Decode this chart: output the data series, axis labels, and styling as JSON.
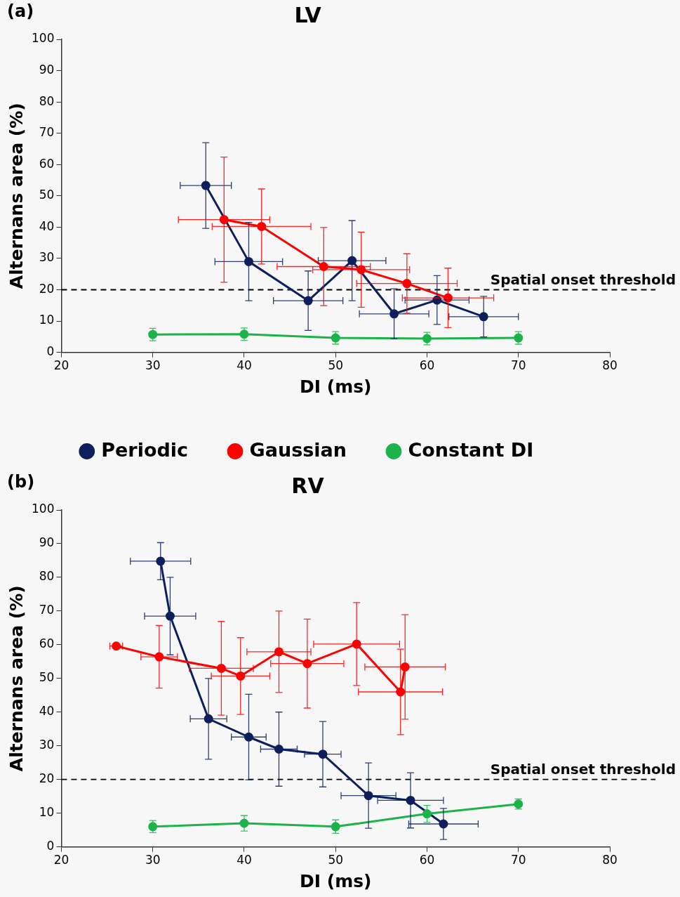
{
  "chart_data": [
    {
      "type": "line",
      "title": "LV",
      "xlabel": "DI (ms)",
      "ylabel": "Alternans area (%)",
      "annotations": [
        "(a)"
      ],
      "xlim": [
        20,
        80
      ],
      "xticks": [
        20,
        30,
        40,
        50,
        60,
        70,
        80
      ],
      "ylim": [
        0,
        100
      ],
      "yticks": [
        0,
        10,
        20,
        30,
        40,
        50,
        60,
        70,
        80,
        90,
        100
      ],
      "grid": false,
      "legend": "bottom",
      "marker": "circle",
      "line_style": "solid",
      "ref_lines": [
        {
          "axis": "y",
          "value": 20,
          "label": "Spatial onset threshold",
          "color": "#000000",
          "line_style": "dashed"
        }
      ],
      "series": [
        {
          "name": "Periodic",
          "color": "#0d1f5c",
          "x": [
            35.8,
            40.5,
            47.0,
            51.8,
            56.4,
            61.1,
            66.2
          ],
          "values": [
            53.3,
            29,
            16.5,
            29.3,
            12.3,
            16.7,
            11.4
          ],
          "errors": [
            13.7,
            12.5,
            9.5,
            12.8,
            8,
            7.8,
            6.5
          ],
          "xerrors": [
            2.8,
            3.7,
            3.8,
            3.7,
            3.8,
            3.5,
            3.8
          ]
        },
        {
          "name": "Gaussian",
          "color": "#ff0000",
          "x": [
            37.8,
            41.9,
            48.7,
            52.8,
            57.8,
            62.3
          ],
          "values": [
            42.4,
            40.2,
            27.4,
            26.4,
            22,
            17.4
          ],
          "errors": [
            20,
            12,
            12.5,
            12,
            9.5,
            9.5
          ],
          "xerrors": [
            5,
            5.4,
            5.1,
            5.3,
            5.5,
            5
          ]
        },
        {
          "name": "Constant DI",
          "color": "#1db34a",
          "x": [
            30,
            40,
            50,
            60,
            70
          ],
          "values": [
            5.7,
            5.8,
            4.6,
            4.4,
            4.6
          ],
          "errors": [
            2,
            2,
            2,
            2,
            2
          ]
        }
      ]
    },
    {
      "type": "line",
      "title": "RV",
      "xlabel": "DI (ms)",
      "ylabel": "Alternans area (%)",
      "annotations": [
        "(b)"
      ],
      "xlim": [
        20,
        80
      ],
      "xticks": [
        20,
        30,
        40,
        50,
        60,
        70,
        80
      ],
      "ylim": [
        0,
        100
      ],
      "yticks": [
        0,
        10,
        20,
        30,
        40,
        50,
        60,
        70,
        80,
        90,
        100
      ],
      "grid": false,
      "marker": "circle",
      "line_style": "solid",
      "ref_lines": [
        {
          "axis": "y",
          "value": 20,
          "label": "Spatial onset threshold",
          "color": "#000000",
          "line_style": "dashed"
        }
      ],
      "series": [
        {
          "color": "#0d1f5c",
          "x": [
            30.85,
            31.9,
            36.1,
            40.5,
            43.8,
            48.6,
            53.6,
            58.2,
            61.8
          ],
          "values": [
            84.8,
            68.5,
            38,
            32.6,
            29,
            27.5,
            15.2,
            13.8,
            6.8
          ],
          "errors": [
            5.5,
            11.5,
            12,
            12.7,
            11,
            9.7,
            9.7,
            8.2,
            4.6
          ],
          "xerrors": [
            3.3,
            2.8,
            2,
            1.9,
            2,
            2,
            3,
            3.6,
            3.8
          ]
        },
        {
          "color": "#ff0000",
          "x": [
            26,
            30.7,
            37.5,
            39.6,
            43.8,
            46.9,
            52.3,
            57.1,
            57.6
          ],
          "values": [
            59.6,
            56.4,
            53,
            50.7,
            57.9,
            54.4,
            60.2,
            46,
            53.4
          ],
          "errors": [
            null,
            9.3,
            13.9,
            11.4,
            12.1,
            13.2,
            12.3,
            12.7,
            15.5
          ],
          "xerrors": [
            0.7,
            2,
            3.5,
            3.2,
            3.5,
            4,
            4.7,
            4.6,
            4.4
          ]
        },
        {
          "color": "#1db34a",
          "x": [
            30,
            40,
            50,
            60,
            70
          ],
          "values": [
            6,
            7,
            6,
            9.8,
            12.7
          ],
          "errors": [
            1.8,
            2.3,
            2,
            2.5,
            1.5
          ]
        }
      ]
    }
  ]
}
